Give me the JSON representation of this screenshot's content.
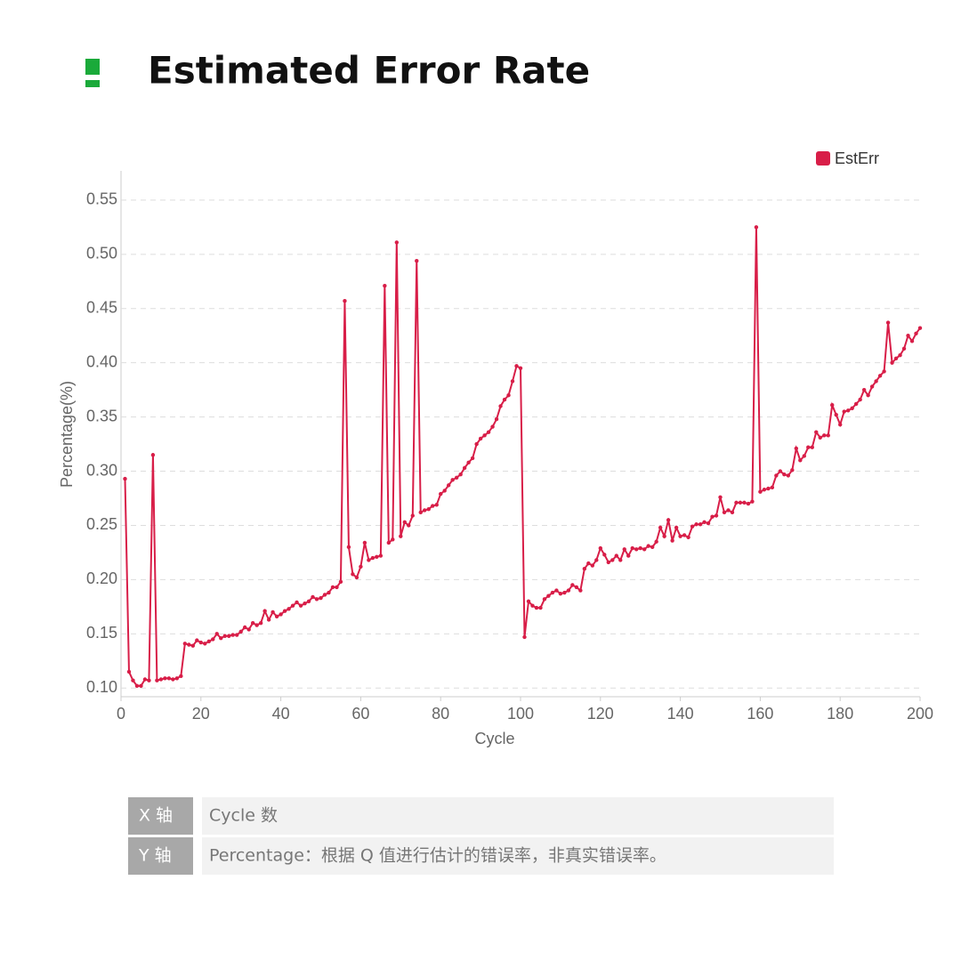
{
  "header": {
    "title": "Estimated Error Rate"
  },
  "chart_data": {
    "type": "line",
    "ylabel": "Percentage(%)",
    "xlabel": "Cycle",
    "xlim": [
      0,
      200
    ],
    "xticks": [
      0,
      20,
      40,
      60,
      80,
      100,
      120,
      140,
      160,
      180,
      200
    ],
    "ylim": [
      0.092,
      0.577
    ],
    "yticks": [
      {
        "value": 0.1,
        "label": "0.10"
      },
      0.15,
      {
        "value": 0.2,
        "label": "0.20"
      },
      0.25,
      {
        "value": 0.3,
        "label": "0.30"
      },
      0.35,
      {
        "value": 0.4,
        "label": "0.40"
      },
      0.45,
      {
        "value": 0.5,
        "label": "0.50"
      },
      0.55
    ],
    "grid": true,
    "legend": "top-right",
    "x": [
      1,
      2,
      3,
      4,
      5,
      6,
      7,
      8,
      9,
      10,
      11,
      12,
      13,
      14,
      15,
      16,
      17,
      18,
      19,
      20,
      21,
      22,
      23,
      24,
      25,
      26,
      27,
      28,
      29,
      30,
      31,
      32,
      33,
      34,
      35,
      36,
      37,
      38,
      39,
      40,
      41,
      42,
      43,
      44,
      45,
      46,
      47,
      48,
      49,
      50,
      51,
      52,
      53,
      54,
      55,
      56,
      57,
      58,
      59,
      60,
      61,
      62,
      63,
      64,
      65,
      66,
      67,
      68,
      69,
      70,
      71,
      72,
      73,
      74,
      75,
      76,
      77,
      78,
      79,
      80,
      81,
      82,
      83,
      84,
      85,
      86,
      87,
      88,
      89,
      90,
      91,
      92,
      93,
      94,
      95,
      96,
      97,
      98,
      99,
      100,
      101,
      102,
      103,
      104,
      105,
      106,
      107,
      108,
      109,
      110,
      111,
      112,
      113,
      114,
      115,
      116,
      117,
      118,
      119,
      120,
      121,
      122,
      123,
      124,
      125,
      126,
      127,
      128,
      129,
      130,
      131,
      132,
      133,
      134,
      135,
      136,
      137,
      138,
      139,
      140,
      141,
      142,
      143,
      144,
      145,
      146,
      147,
      148,
      149,
      150,
      151,
      152,
      153,
      154,
      155,
      156,
      157,
      158,
      159,
      160,
      161,
      162,
      163,
      164,
      165,
      166,
      167,
      168,
      169,
      170,
      171,
      172,
      173,
      174,
      175,
      176,
      177,
      178,
      179,
      180,
      181,
      182,
      183,
      184,
      185,
      186,
      187,
      188,
      189,
      190,
      191,
      192,
      193,
      194,
      195,
      196,
      197,
      198,
      199,
      200
    ],
    "series": [
      {
        "name": "EstErr",
        "color": "#d81e48",
        "values": [
          0.293,
          0.115,
          0.107,
          0.102,
          0.102,
          0.108,
          0.107,
          0.315,
          0.107,
          0.108,
          0.109,
          0.109,
          0.108,
          0.109,
          0.111,
          0.141,
          0.14,
          0.139,
          0.144,
          0.142,
          0.141,
          0.143,
          0.145,
          0.15,
          0.146,
          0.148,
          0.148,
          0.149,
          0.149,
          0.152,
          0.156,
          0.154,
          0.16,
          0.158,
          0.16,
          0.171,
          0.163,
          0.17,
          0.166,
          0.168,
          0.171,
          0.173,
          0.176,
          0.179,
          0.176,
          0.178,
          0.18,
          0.184,
          0.182,
          0.183,
          0.186,
          0.188,
          0.193,
          0.193,
          0.198,
          0.457,
          0.23,
          0.205,
          0.202,
          0.212,
          0.234,
          0.218,
          0.22,
          0.221,
          0.222,
          0.471,
          0.234,
          0.237,
          0.511,
          0.24,
          0.253,
          0.25,
          0.259,
          0.494,
          0.262,
          0.264,
          0.265,
          0.268,
          0.269,
          0.279,
          0.282,
          0.287,
          0.292,
          0.294,
          0.297,
          0.303,
          0.308,
          0.312,
          0.325,
          0.33,
          0.333,
          0.336,
          0.341,
          0.348,
          0.36,
          0.366,
          0.37,
          0.383,
          0.397,
          0.395,
          0.147,
          0.18,
          0.176,
          0.174,
          0.174,
          0.182,
          0.185,
          0.188,
          0.19,
          0.187,
          0.188,
          0.19,
          0.195,
          0.193,
          0.19,
          0.21,
          0.215,
          0.213,
          0.218,
          0.229,
          0.223,
          0.216,
          0.218,
          0.222,
          0.218,
          0.228,
          0.222,
          0.229,
          0.228,
          0.229,
          0.228,
          0.231,
          0.23,
          0.235,
          0.248,
          0.24,
          0.255,
          0.236,
          0.248,
          0.24,
          0.241,
          0.239,
          0.249,
          0.251,
          0.251,
          0.253,
          0.252,
          0.258,
          0.259,
          0.276,
          0.262,
          0.264,
          0.262,
          0.271,
          0.271,
          0.271,
          0.27,
          0.272,
          0.525,
          0.281,
          0.283,
          0.284,
          0.285,
          0.296,
          0.3,
          0.297,
          0.296,
          0.301,
          0.321,
          0.31,
          0.314,
          0.322,
          0.322,
          0.336,
          0.331,
          0.333,
          0.333,
          0.361,
          0.352,
          0.343,
          0.355,
          0.356,
          0.358,
          0.362,
          0.366,
          0.375,
          0.37,
          0.378,
          0.383,
          0.388,
          0.392,
          0.437,
          0.4,
          0.404,
          0.407,
          0.413,
          0.425,
          0.42,
          0.427,
          0.432
        ]
      }
    ]
  },
  "table": {
    "rows": [
      [
        "X 轴",
        "Cycle 数"
      ],
      [
        "Y 轴",
        "Percentage：根据 Q 值进行估计的错误率，非真实错误率。"
      ]
    ]
  }
}
